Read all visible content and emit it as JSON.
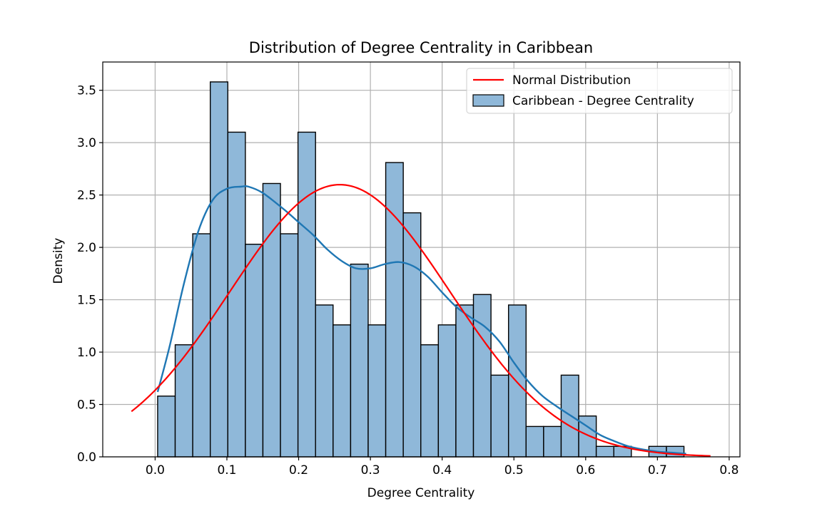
{
  "chart_data": {
    "type": "bar",
    "title": "Distribution of Degree Centrality in Caribbean",
    "xlabel": "Degree Centrality",
    "ylabel": "Density",
    "xlim": [
      -0.073,
      0.815
    ],
    "ylim": [
      0,
      3.77
    ],
    "xticks": [
      0.0,
      0.1,
      0.2,
      0.3,
      0.4,
      0.5,
      0.6,
      0.7,
      0.8
    ],
    "xtick_labels": [
      "0.0",
      "0.1",
      "0.2",
      "0.3",
      "0.4",
      "0.5",
      "0.6",
      "0.7",
      "0.8"
    ],
    "yticks": [
      0.0,
      0.5,
      1.0,
      1.5,
      2.0,
      2.5,
      3.0,
      3.5
    ],
    "ytick_labels": [
      "0.0",
      "0.5",
      "1.0",
      "1.5",
      "2.0",
      "2.5",
      "3.0",
      "3.5"
    ],
    "grid": true,
    "legend_position": "top-right",
    "histogram": {
      "name": "Caribbean - Degree Centrality",
      "bin_start": 0.0035,
      "bin_width": 0.02445,
      "values": [
        0.58,
        1.07,
        2.13,
        3.58,
        3.1,
        2.03,
        2.61,
        2.13,
        3.1,
        1.45,
        1.26,
        1.84,
        1.26,
        2.81,
        2.33,
        1.07,
        1.26,
        1.45,
        1.55,
        0.78,
        1.45,
        0.29,
        0.29,
        0.78,
        0.39,
        0.1,
        0.1,
        0.0,
        0.1,
        0.1
      ],
      "color": "#8fb8d9",
      "edge_color": "#000000"
    },
    "kde": {
      "color": "#1f77b4",
      "x": [
        0.0035,
        0.02,
        0.04,
        0.06,
        0.08,
        0.1,
        0.12,
        0.13,
        0.15,
        0.18,
        0.2,
        0.22,
        0.24,
        0.26,
        0.28,
        0.3,
        0.32,
        0.34,
        0.36,
        0.38,
        0.4,
        0.42,
        0.44,
        0.46,
        0.48,
        0.5,
        0.52,
        0.54,
        0.56,
        0.58,
        0.6,
        0.62,
        0.64,
        0.66,
        0.68,
        0.7,
        0.72,
        0.74
      ],
      "y": [
        0.62,
        1.05,
        1.65,
        2.15,
        2.45,
        2.56,
        2.58,
        2.58,
        2.52,
        2.36,
        2.24,
        2.12,
        1.98,
        1.87,
        1.8,
        1.8,
        1.84,
        1.86,
        1.82,
        1.72,
        1.57,
        1.43,
        1.33,
        1.24,
        1.1,
        0.9,
        0.72,
        0.58,
        0.48,
        0.39,
        0.3,
        0.21,
        0.15,
        0.1,
        0.07,
        0.05,
        0.04,
        0.03
      ]
    },
    "series": [
      {
        "name": "Normal Distribution",
        "color": "#ff0000",
        "mean": 0.2575,
        "std": 0.1535,
        "x_range": [
          -0.033,
          0.774
        ]
      }
    ]
  }
}
